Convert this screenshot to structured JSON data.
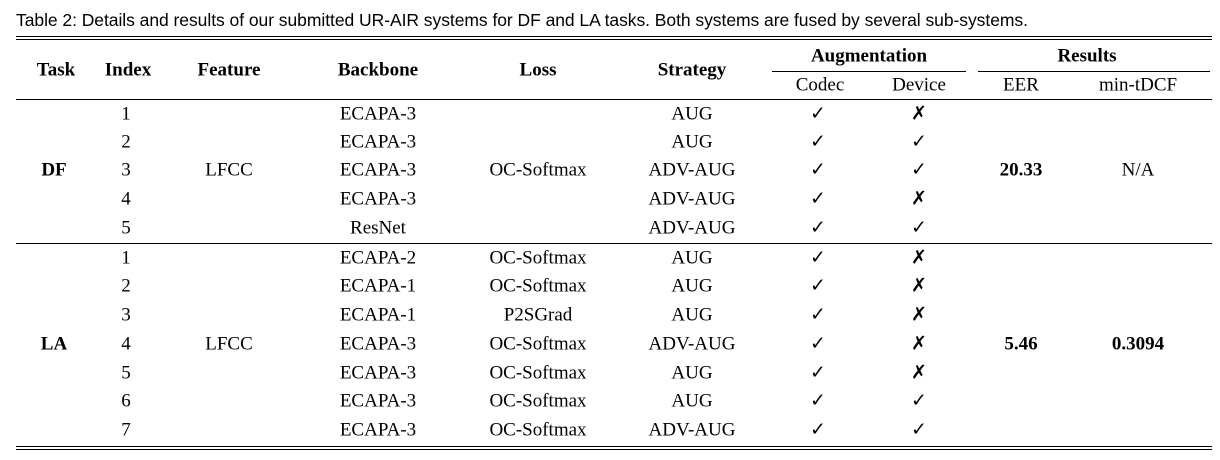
{
  "caption": "Table 2: Details and results of our submitted UR-AIR systems for DF and LA tasks. Both systems are fused by several sub-systems.",
  "headers": {
    "task": "Task",
    "index": "Index",
    "feature": "Feature",
    "backbone": "Backbone",
    "loss": "Loss",
    "strategy": "Strategy",
    "augmentation": "Augmentation",
    "codec": "Codec",
    "device": "Device",
    "results": "Results",
    "eer": "EER",
    "min_tdcf": "min-tDCF"
  },
  "groups": [
    {
      "task": "DF",
      "feature": "LFCC",
      "loss": "OC-Softmax",
      "eer": "20.33",
      "min_tdcf": "N/A",
      "rows": [
        {
          "index": "1",
          "backbone": "ECAPA-3",
          "loss": "",
          "strategy": "AUG",
          "codec": "✓",
          "device": "✗"
        },
        {
          "index": "2",
          "backbone": "ECAPA-3",
          "loss": "",
          "strategy": "AUG",
          "codec": "✓",
          "device": "✓"
        },
        {
          "index": "3",
          "backbone": "ECAPA-3",
          "loss": "",
          "strategy": "ADV-AUG",
          "codec": "✓",
          "device": "✓"
        },
        {
          "index": "4",
          "backbone": "ECAPA-3",
          "loss": "",
          "strategy": "ADV-AUG",
          "codec": "✓",
          "device": "✗"
        },
        {
          "index": "5",
          "backbone": "ResNet",
          "loss": "",
          "strategy": "ADV-AUG",
          "codec": "✓",
          "device": "✓"
        }
      ]
    },
    {
      "task": "LA",
      "feature": "LFCC",
      "loss": "",
      "eer": "5.46",
      "min_tdcf": "0.3094",
      "rows": [
        {
          "index": "1",
          "backbone": "ECAPA-2",
          "loss": "OC-Softmax",
          "strategy": "AUG",
          "codec": "✓",
          "device": "✗"
        },
        {
          "index": "2",
          "backbone": "ECAPA-1",
          "loss": "OC-Softmax",
          "strategy": "AUG",
          "codec": "✓",
          "device": "✗"
        },
        {
          "index": "3",
          "backbone": "ECAPA-1",
          "loss": "P2SGrad",
          "strategy": "AUG",
          "codec": "✓",
          "device": "✗"
        },
        {
          "index": "4",
          "backbone": "ECAPA-3",
          "loss": "OC-Softmax",
          "strategy": "ADV-AUG",
          "codec": "✓",
          "device": "✗"
        },
        {
          "index": "5",
          "backbone": "ECAPA-3",
          "loss": "OC-Softmax",
          "strategy": "AUG",
          "codec": "✓",
          "device": "✗"
        },
        {
          "index": "6",
          "backbone": "ECAPA-3",
          "loss": "OC-Softmax",
          "strategy": "AUG",
          "codec": "✓",
          "device": "✓"
        },
        {
          "index": "7",
          "backbone": "ECAPA-3",
          "loss": "OC-Softmax",
          "strategy": "ADV-AUG",
          "codec": "✓",
          "device": "✓"
        }
      ]
    }
  ]
}
